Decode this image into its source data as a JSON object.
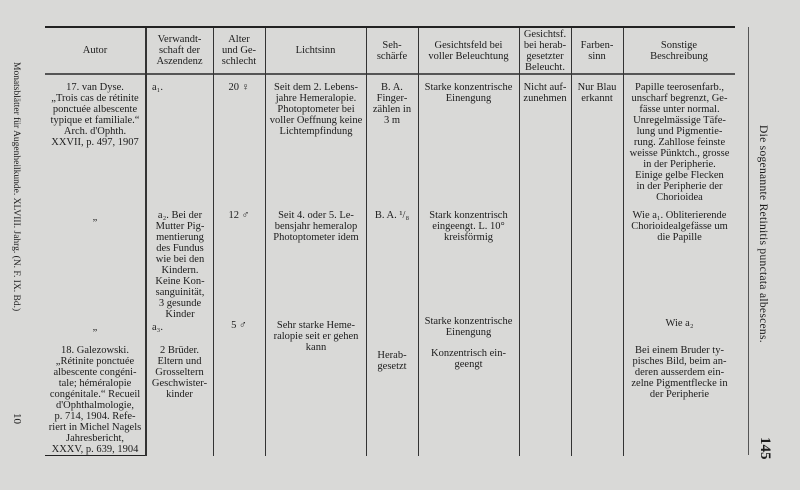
{
  "margin_left": {
    "journal": "Monatsblätter für Augenheilkunde.   XLVIII. Jahrg. (N. F. IX. Bd.)",
    "sheet_number": "10"
  },
  "margin_right": {
    "running_title": "Die sogenannte Retinitis punctata albescens.",
    "page_number": "145"
  },
  "table": {
    "headers": [
      "Autor",
      "Verwandt-\nschaft der\nAszendenz",
      "Alter\nund Ge-\nschlecht",
      "Lichtsinn",
      "Seh-\nschärfe",
      "Gesichtsfeld bei\nvoller Beleuchtung",
      "Gesichtsf.\nbei herab-\ngesetzter\nBeleucht.",
      "Farben-\nsinn",
      "Sonstige\nBeschreibung"
    ],
    "rows": [
      {
        "autor": "17. van Dyse.\n„Trois cas de rétinite\nponctuée albescente\ntypique et familiale.“\nArch. d'Ophth.\nXXVII, p. 497, 1907",
        "verwandtschaft": "a₁.",
        "alter": "20 ♀",
        "lichtsinn": "Seit dem 2. Lebens-\njahre Hemeralopie.\nPhotoptometer bei\nvoller Oeffnung keine\nLichtempfindung",
        "sehschaerfe": "B. A.\nFinger-\nzählen in\n3 m",
        "gesichtsfeld": "Starke konzentrische\nEinengung",
        "gesichtsfeld_herab": "Nicht auf-\nzunehmen",
        "farbensinn": "Nur Blau\nerkannt",
        "sonstige": "Papille teerosenfarb.,\nunscharf begrenzt, Ge-\nfässe unter normal.\nUnregelmässige Täfe-\nlung und Pigmentie-\nrung. Zahllose feinste\nweisse Pünktch., grosse\nin der Peripherie.\nEinige gelbe Flecken\nin der Peripherie der\nChorioidea"
      },
      {
        "autor": "„",
        "verwandtschaft": "a₂. Bei der\nMutter Pig-\nmentierung\ndes Fundus\nwie bei den\nKindern.\nKeine Kon-\nsanguinität,\n3 gesunde\nKinder",
        "alter": "12 ♂",
        "lichtsinn": "Seit 4. oder 5. Le-\nbensjahr hemeralop\nPhotoptometer idem",
        "sehschaerfe": "B. A. ¹/₈",
        "gesichtsfeld": "Stark konzentrisch\neingeengt. L. 10°\nkreisförmig",
        "gesichtsfeld_herab": "",
        "farbensinn": "",
        "sonstige": "Wie a₁. Obliterierende\nChorioidealgefässe um\ndie Papille"
      },
      {
        "autor": "„",
        "verwandtschaft": "a₃.",
        "alter": "5 ♂",
        "lichtsinn": "Sehr starke Heme-\nralopie seit er gehen\nkann",
        "sehschaerfe": "",
        "gesichtsfeld": "Starke konzentrische\nEinengung",
        "gesichtsfeld_herab": "",
        "farbensinn": "",
        "sonstige": "Wie a₂"
      },
      {
        "autor": "18. Galezowski.\n„Rétinite ponctuée\nalbescente congéni-\ntale; héméralopie\ncongénitale.“ Recueil\nd'Ophthalmologie,\np. 714, 1904. Refe-\nriert in Michel Nagels\nJahresbericht,\nXXXV, p. 639, 1904",
        "verwandtschaft": "2 Brüder.\nEltern und\nGrosseltern\nGeschwister-\nkinder",
        "alter": "",
        "lichtsinn": "",
        "sehschaerfe": "Herab-\ngesetzt",
        "gesichtsfeld": "Konzentrisch ein-\ngeengt",
        "gesichtsfeld_herab": "",
        "farbensinn": "",
        "sonstige": "Bei einem Bruder ty-\npisches Bild, beim an-\nderen ausserdem ein-\nzelne Pigmentflecke in\nder Peripherie"
      }
    ]
  }
}
